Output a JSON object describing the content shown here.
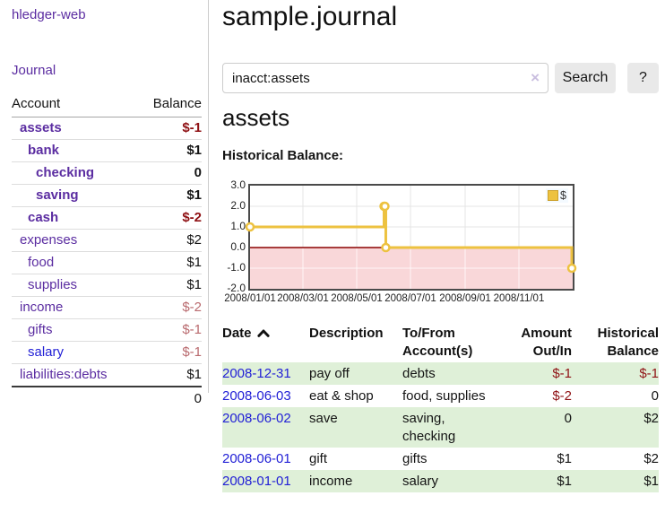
{
  "colors": {
    "purple_link": "#5b2da1",
    "blue_link": "#2220d6",
    "negative_red": "#8f1114",
    "negative_rose": "#b96a6e",
    "row_green": "#dff0d8",
    "chart_line": "#edc240",
    "chart_negative_zone": "#f9d7d9",
    "chart_zero_line": "#8b0000",
    "chart_grid": "#e4e4e4"
  },
  "sidebar": {
    "app_title": "hledger-web",
    "journal_link": "Journal",
    "accounts_header": {
      "account": "Account",
      "balance": "Balance"
    },
    "accounts": [
      {
        "name": "assets",
        "level": 0,
        "bold": true,
        "link_style": "purple",
        "balance": "$-1",
        "balance_style": "neg"
      },
      {
        "name": "bank",
        "level": 1,
        "bold": true,
        "link_style": "purple",
        "balance": "$1",
        "balance_style": "pos"
      },
      {
        "name": "checking",
        "level": 2,
        "bold": true,
        "link_style": "purple",
        "balance": "0",
        "balance_style": "pos"
      },
      {
        "name": "saving",
        "level": 2,
        "bold": true,
        "link_style": "purple",
        "balance": "$1",
        "balance_style": "pos"
      },
      {
        "name": "cash",
        "level": 1,
        "bold": true,
        "link_style": "purple",
        "balance": "$-2",
        "balance_style": "neg"
      },
      {
        "name": "expenses",
        "level": 0,
        "bold": false,
        "link_style": "purple",
        "balance": "$2",
        "balance_style": "pos"
      },
      {
        "name": "food",
        "level": 1,
        "bold": false,
        "link_style": "purple",
        "balance": "$1",
        "balance_style": "pos"
      },
      {
        "name": "supplies",
        "level": 1,
        "bold": false,
        "link_style": "purple",
        "balance": "$1",
        "balance_style": "pos"
      },
      {
        "name": "income",
        "level": 0,
        "bold": false,
        "link_style": "purple",
        "balance": "$-2",
        "balance_style": "neg-light"
      },
      {
        "name": "gifts",
        "level": 1,
        "bold": false,
        "link_style": "purple",
        "balance": "$-1",
        "balance_style": "neg-light"
      },
      {
        "name": "salary",
        "level": 1,
        "bold": false,
        "link_style": "blue",
        "balance": "$-1",
        "balance_style": "neg-light"
      },
      {
        "name": "liabilities:debts",
        "level": 0,
        "bold": false,
        "link_style": "purple",
        "balance": "$1",
        "balance_style": "pos"
      }
    ],
    "total": "0"
  },
  "main": {
    "title": "sample.journal",
    "search": {
      "value": "inacct:assets",
      "clear_icon": "×",
      "search_label": "Search",
      "help_label": "?"
    },
    "account_heading": "assets",
    "chart_label": "Historical Balance:"
  },
  "chart_data": {
    "type": "line",
    "step": true,
    "title": "Historical Balance",
    "series": [
      {
        "name": "$",
        "points": [
          [
            "2008-01-01",
            1
          ],
          [
            "2008-06-01",
            2
          ],
          [
            "2008-06-02",
            2
          ],
          [
            "2008-06-03",
            0
          ],
          [
            "2008-12-31",
            -1
          ]
        ]
      }
    ],
    "x_ticks": [
      {
        "date": "2008-01-01",
        "label": "2008/01/01"
      },
      {
        "date": "2008-03-01",
        "label": "2008/03/01"
      },
      {
        "date": "2008-05-01",
        "label": "2008/05/01"
      },
      {
        "date": "2008-07-01",
        "label": "2008/07/01"
      },
      {
        "date": "2008-09-01",
        "label": "2008/09/01"
      },
      {
        "date": "2008-11-01",
        "label": "2008/11/01"
      }
    ],
    "y_ticks": [
      3,
      2,
      1,
      0,
      -1,
      -2
    ],
    "ylim": [
      -2,
      3
    ],
    "xlim": [
      "2008-01-01",
      "2009-01-01"
    ],
    "legend": {
      "label": "$",
      "position": "top-right"
    },
    "grid": true,
    "negative_zone_shaded": true
  },
  "register": {
    "headers": {
      "date": "Date",
      "description": "Description",
      "account": "To/From Account(s)",
      "amount": "Amount Out/In",
      "balance": "Historical Balance"
    },
    "sort_icon": "chevron-up-icon",
    "rows": [
      {
        "date": "2008-12-31",
        "description": "pay off",
        "accounts": "debts",
        "amount": "$-1",
        "amount_neg": true,
        "balance": "$-1",
        "balance_neg": true
      },
      {
        "date": "2008-06-03",
        "description": "eat & shop",
        "accounts": "food, supplies",
        "amount": "$-2",
        "amount_neg": true,
        "balance": "0",
        "balance_neg": false
      },
      {
        "date": "2008-06-02",
        "description": "save",
        "accounts": "saving, checking",
        "amount": "0",
        "amount_neg": false,
        "balance": "$2",
        "balance_neg": false
      },
      {
        "date": "2008-06-01",
        "description": "gift",
        "accounts": "gifts",
        "amount": "$1",
        "amount_neg": false,
        "balance": "$2",
        "balance_neg": false
      },
      {
        "date": "2008-01-01",
        "description": "income",
        "accounts": "salary",
        "amount": "$1",
        "amount_neg": false,
        "balance": "$1",
        "balance_neg": false
      }
    ]
  }
}
